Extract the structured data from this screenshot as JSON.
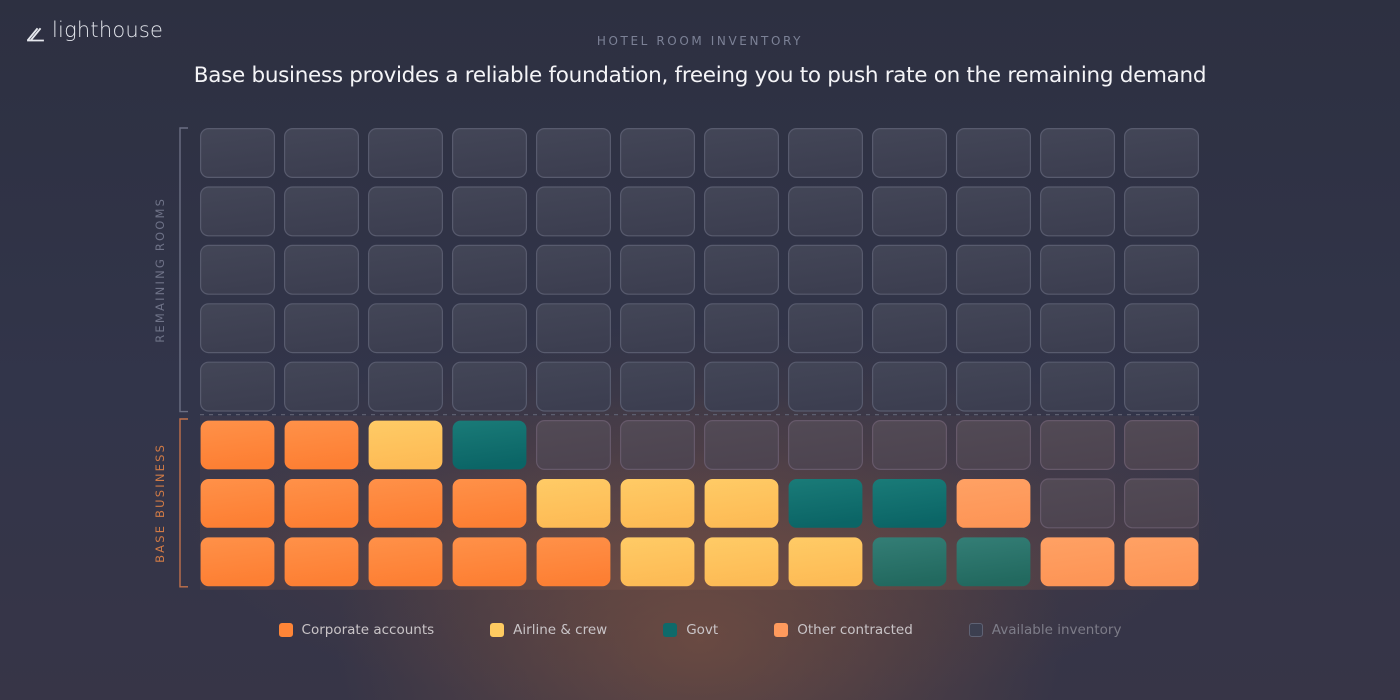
{
  "brand": {
    "name": "lighthouse",
    "icon": "lighthouse-logo-icon"
  },
  "header": {
    "eyebrow": "HOTEL ROOM INVENTORY",
    "title": "Base business provides a reliable foundation, freeing you to push rate on the remaining demand"
  },
  "colors": {
    "corporate": "#fe8537",
    "airline": "#fec25a",
    "govt": "#0e6a6a",
    "govt_alt": "#25706a",
    "other": "#fe9a5d",
    "available_fill": "#3f4254",
    "available_border": "#5a5d70",
    "bracket_remaining": "#6b6f83",
    "bracket_base": "#c1714a",
    "label_remaining": "#6f7388",
    "label_base": "#d07a46"
  },
  "chart_data": {
    "type": "heatmap",
    "title": "Base business provides a reliable foundation, freeing you to push rate on the remaining demand",
    "subtitle": "HOTEL ROOM INVENTORY",
    "columns": 12,
    "rows": 8,
    "sections": [
      {
        "name": "remaining",
        "label": "REMAINING ROOMS",
        "rows": [
          0,
          1,
          2,
          3,
          4
        ]
      },
      {
        "name": "base",
        "label": "BASE BUSINESS",
        "rows": [
          5,
          6,
          7
        ]
      }
    ],
    "categories": {
      "C": "Corporate accounts",
      "A": "Airline & crew",
      "G": "Govt",
      "O": "Other contracted",
      "E": "Available inventory"
    },
    "grid": [
      [
        "E",
        "E",
        "E",
        "E",
        "E",
        "E",
        "E",
        "E",
        "E",
        "E",
        "E",
        "E"
      ],
      [
        "E",
        "E",
        "E",
        "E",
        "E",
        "E",
        "E",
        "E",
        "E",
        "E",
        "E",
        "E"
      ],
      [
        "E",
        "E",
        "E",
        "E",
        "E",
        "E",
        "E",
        "E",
        "E",
        "E",
        "E",
        "E"
      ],
      [
        "E",
        "E",
        "E",
        "E",
        "E",
        "E",
        "E",
        "E",
        "E",
        "E",
        "E",
        "E"
      ],
      [
        "E",
        "E",
        "E",
        "E",
        "E",
        "E",
        "E",
        "E",
        "E",
        "E",
        "E",
        "E"
      ],
      [
        "C",
        "C",
        "A",
        "G",
        "E",
        "E",
        "E",
        "E",
        "E",
        "E",
        "E",
        "E"
      ],
      [
        "C",
        "C",
        "C",
        "C",
        "A",
        "A",
        "A",
        "G",
        "G",
        "O",
        "E",
        "E"
      ],
      [
        "C",
        "C",
        "C",
        "C",
        "C",
        "A",
        "A",
        "A",
        "G",
        "G",
        "O",
        "O"
      ]
    ],
    "counts": {
      "Corporate accounts": 11,
      "Airline & crew": 7,
      "Govt": 5,
      "Other contracted": 3,
      "Available inventory": 70
    },
    "legend": [
      {
        "key": "C",
        "label": "Corporate accounts",
        "color": "#fe8537"
      },
      {
        "key": "A",
        "label": "Airline & crew",
        "color": "#fec25a"
      },
      {
        "key": "G",
        "label": "Govt",
        "color": "#0e6a6a"
      },
      {
        "key": "O",
        "label": "Other contracted",
        "color": "#fe9a5d"
      },
      {
        "key": "E",
        "label": "Available inventory",
        "color": "#3f4254"
      }
    ],
    "legend_position": "bottom-center"
  }
}
